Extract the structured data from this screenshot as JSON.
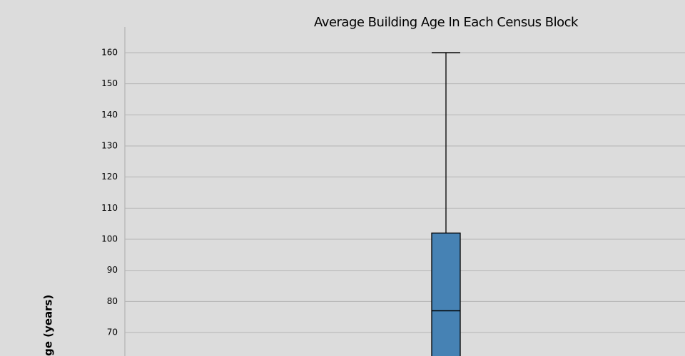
{
  "chart_data": {
    "type": "box",
    "title": "Average Building Age In Each Census Block",
    "y_label": "ge (years)",
    "box": {
      "max": 160,
      "q3": 102,
      "median": 77
    },
    "color": "#4682b4",
    "ylim": [
      62,
      168
    ],
    "yticks": [
      70,
      80,
      90,
      100,
      110,
      120,
      130,
      140,
      150,
      160
    ],
    "grid": true
  }
}
